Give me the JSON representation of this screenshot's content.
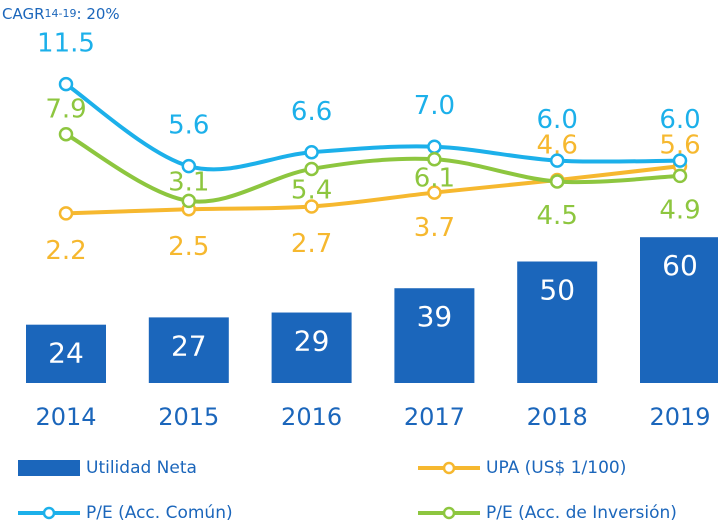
{
  "chart_data": {
    "type": "bar_line",
    "title": {
      "prefix": "CAGR",
      "sub": "14-19",
      "suffix": ": 20%"
    },
    "categories": [
      "2014",
      "2015",
      "2016",
      "2017",
      "2018",
      "2019"
    ],
    "series": [
      {
        "name": "Utilidad Neta",
        "type": "bar",
        "color": "#1b66bb",
        "values": [
          24,
          27,
          29,
          39,
          50,
          60
        ]
      },
      {
        "name": "UPA (US$ 1/100)",
        "type": "line",
        "color": "#f6b82f",
        "values": [
          2.2,
          2.5,
          2.7,
          3.7,
          4.6,
          5.6
        ]
      },
      {
        "name": "P/E (Acc. Común)",
        "type": "line",
        "color": "#1cb0ea",
        "values": [
          11.5,
          5.6,
          6.6,
          7.0,
          6.0,
          6.0
        ],
        "value_labels": [
          "11.5",
          "5.6",
          "6.6",
          "7.0",
          "6.0",
          "6.0"
        ]
      },
      {
        "name": "P/E (Acc. de Inversión)",
        "type": "line",
        "color": "#8dc63f",
        "values": [
          7.9,
          3.1,
          5.4,
          6.1,
          4.5,
          4.9
        ]
      }
    ]
  }
}
